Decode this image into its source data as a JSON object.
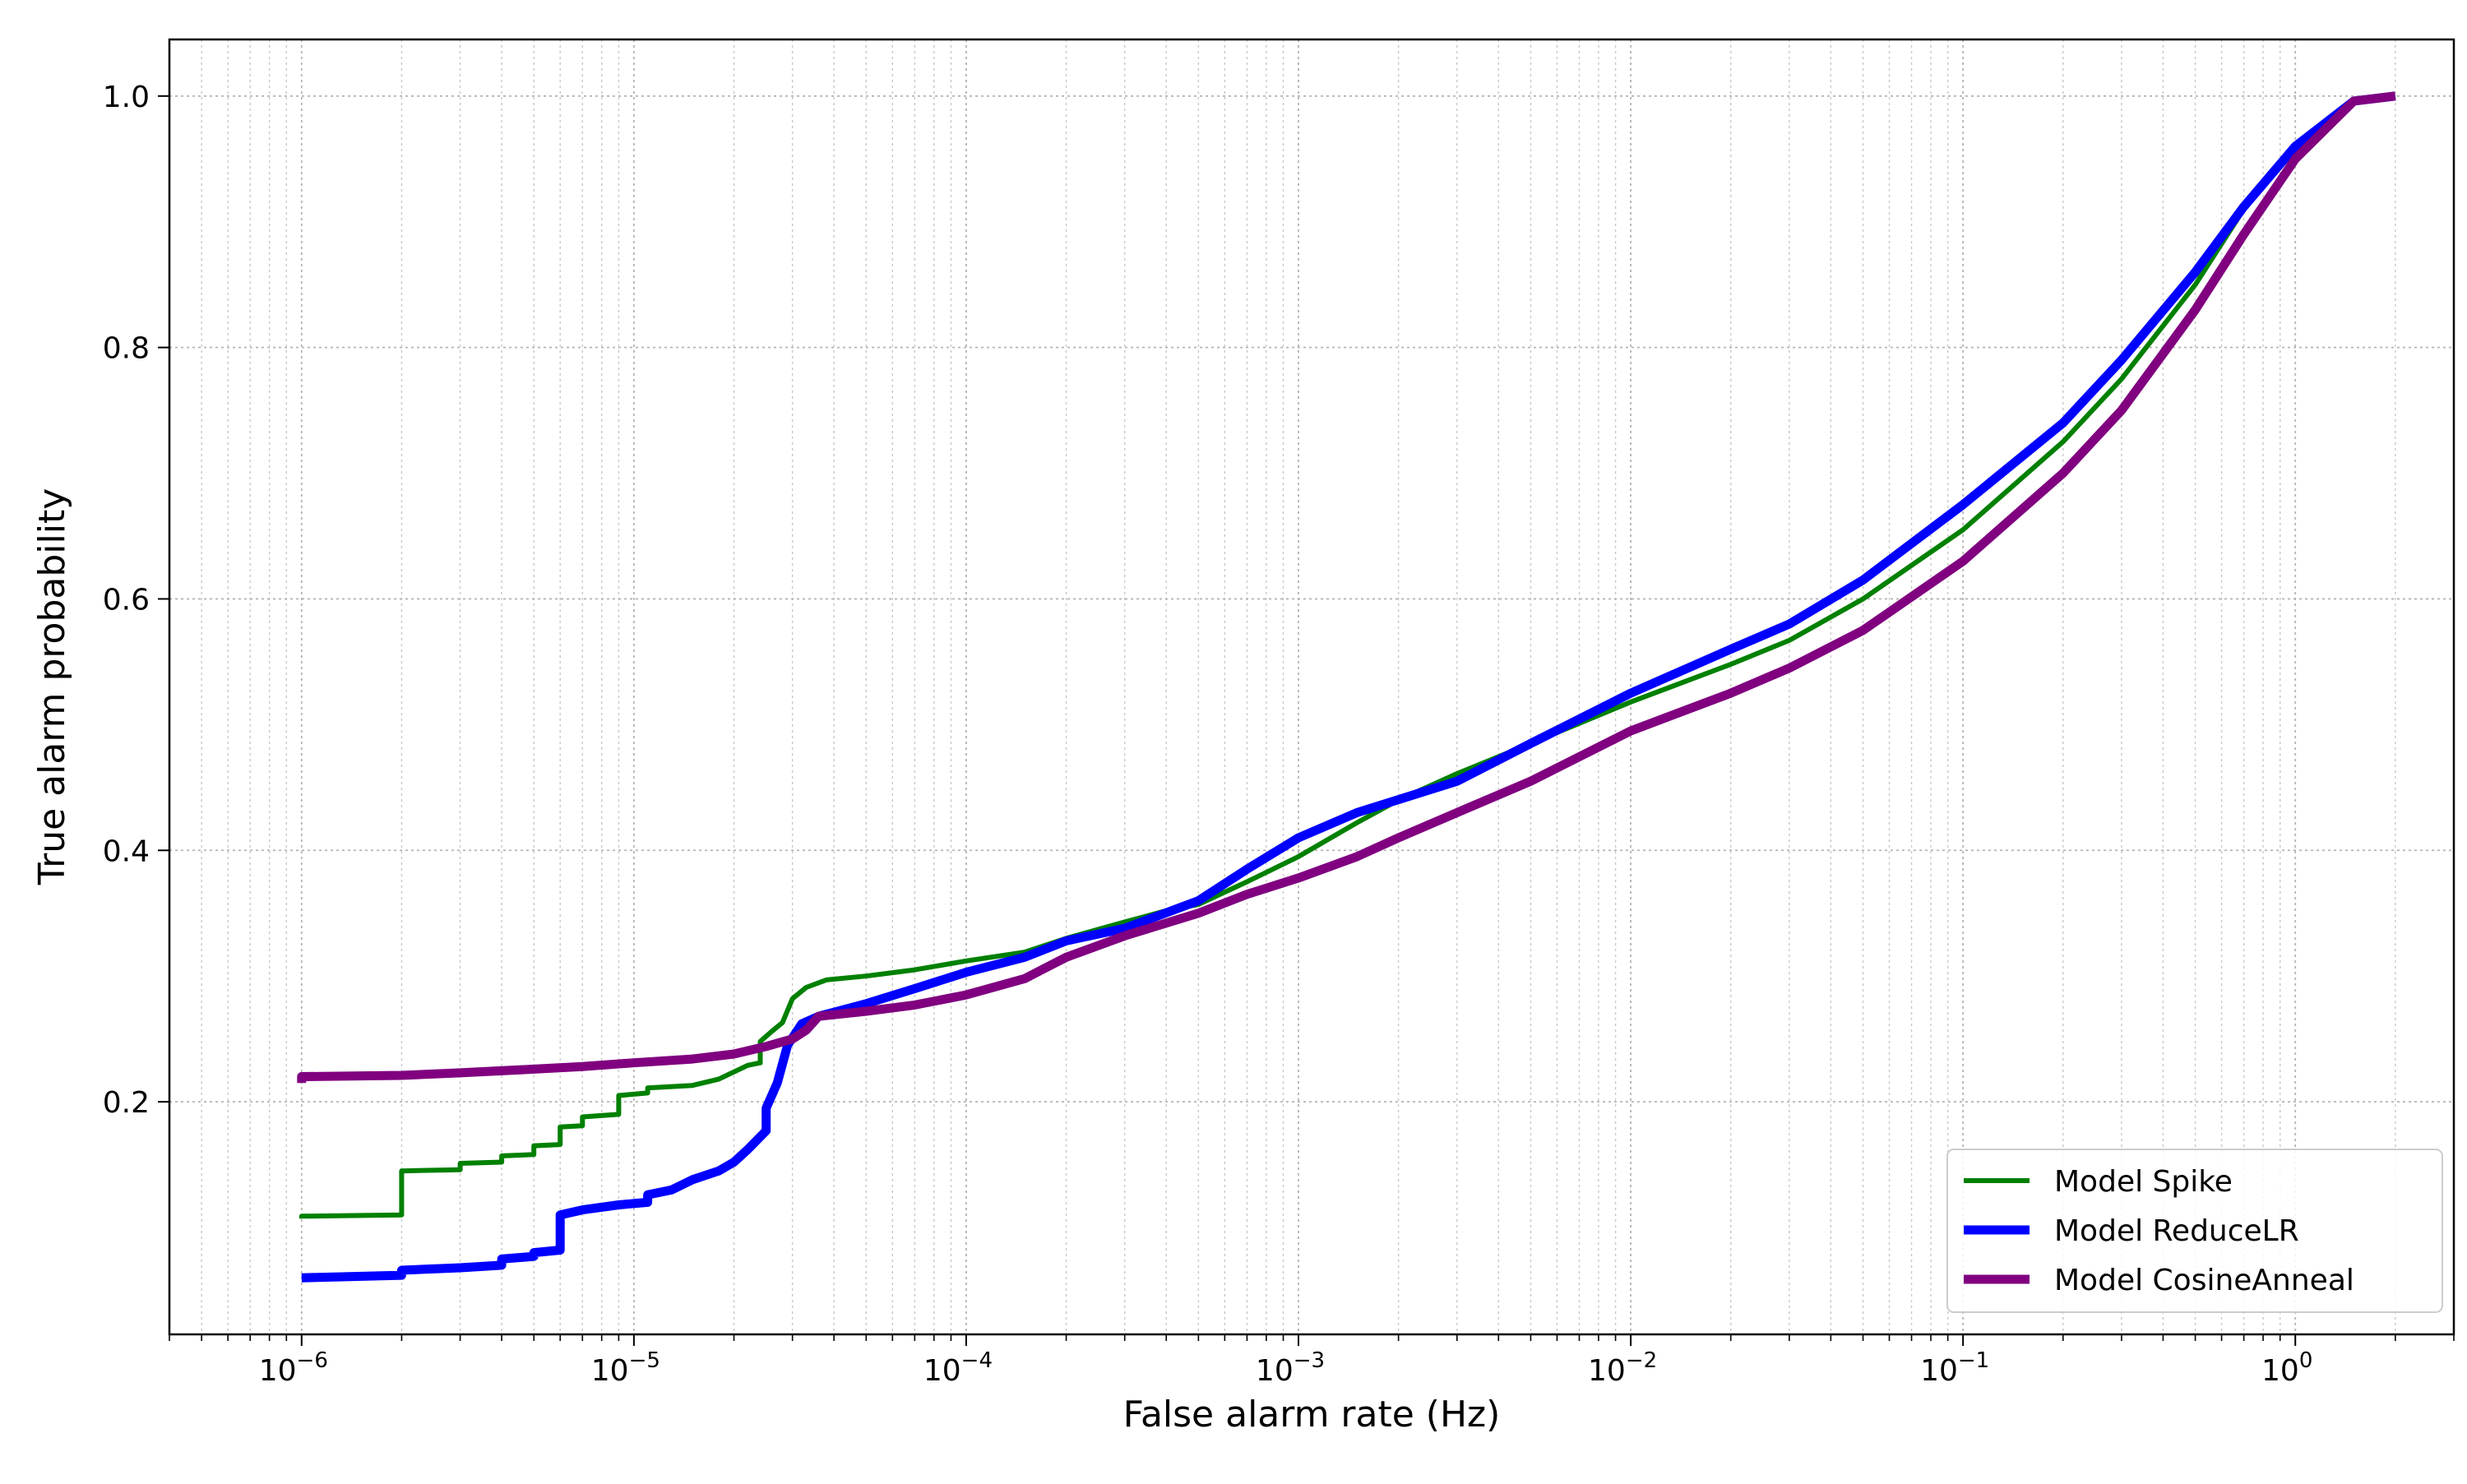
{
  "chart_data": {
    "type": "line",
    "title": "",
    "xlabel": "False alarm rate (Hz)",
    "ylabel": "True alarm probability",
    "xscale": "log",
    "xlim": [
      4e-07,
      3.0
    ],
    "ylim": [
      0.015,
      1.045
    ],
    "x_ticks": [
      {
        "value": 1e-06,
        "base": "10",
        "exp": "−6"
      },
      {
        "value": 1e-05,
        "base": "10",
        "exp": "−5"
      },
      {
        "value": 0.0001,
        "base": "10",
        "exp": "−4"
      },
      {
        "value": 0.001,
        "base": "10",
        "exp": "−3"
      },
      {
        "value": 0.01,
        "base": "10",
        "exp": "−2"
      },
      {
        "value": 0.1,
        "base": "10",
        "exp": "−1"
      },
      {
        "value": 1,
        "base": "10",
        "exp": "0"
      }
    ],
    "y_ticks": [
      {
        "value": 0.2,
        "label": "0.2"
      },
      {
        "value": 0.4,
        "label": "0.4"
      },
      {
        "value": 0.6,
        "label": "0.6"
      },
      {
        "value": 0.8,
        "label": "0.8"
      },
      {
        "value": 1.0,
        "label": "1.0"
      }
    ],
    "grid": true,
    "legend_position": "bottom-right",
    "series": [
      {
        "name": "Model Spike",
        "color": "#008000",
        "line": "thin",
        "points": [
          [
            1e-06,
            0.107
          ],
          [
            1e-06,
            0.109
          ],
          [
            2e-06,
            0.11
          ],
          [
            2e-06,
            0.145
          ],
          [
            3e-06,
            0.146
          ],
          [
            3e-06,
            0.151
          ],
          [
            4e-06,
            0.152
          ],
          [
            4e-06,
            0.157
          ],
          [
            5e-06,
            0.158
          ],
          [
            5e-06,
            0.165
          ],
          [
            6e-06,
            0.166
          ],
          [
            6e-06,
            0.18
          ],
          [
            7e-06,
            0.181
          ],
          [
            7e-06,
            0.188
          ],
          [
            9e-06,
            0.19
          ],
          [
            9e-06,
            0.205
          ],
          [
            1.1e-05,
            0.207
          ],
          [
            1.1e-05,
            0.211
          ],
          [
            1.5e-05,
            0.213
          ],
          [
            1.8e-05,
            0.218
          ],
          [
            2.2e-05,
            0.229
          ],
          [
            2.4e-05,
            0.231
          ],
          [
            2.4e-05,
            0.248
          ],
          [
            2.6e-05,
            0.256
          ],
          [
            2.8e-05,
            0.263
          ],
          [
            3e-05,
            0.282
          ],
          [
            3.3e-05,
            0.291
          ],
          [
            3.8e-05,
            0.297
          ],
          [
            5e-05,
            0.3
          ],
          [
            7e-05,
            0.305
          ],
          [
            0.0001,
            0.312
          ],
          [
            0.00015,
            0.319
          ],
          [
            0.0002,
            0.33
          ],
          [
            0.0003,
            0.343
          ],
          [
            0.0004,
            0.352
          ],
          [
            0.0005,
            0.357
          ],
          [
            0.0007,
            0.375
          ],
          [
            0.001,
            0.395
          ],
          [
            0.0015,
            0.422
          ],
          [
            0.002,
            0.44
          ],
          [
            0.003,
            0.461
          ],
          [
            0.005,
            0.485
          ],
          [
            0.01,
            0.518
          ],
          [
            0.02,
            0.548
          ],
          [
            0.03,
            0.567
          ],
          [
            0.05,
            0.6
          ],
          [
            0.1,
            0.655
          ],
          [
            0.2,
            0.725
          ],
          [
            0.3,
            0.775
          ],
          [
            0.5,
            0.85
          ],
          [
            0.7,
            0.91
          ],
          [
            1.0,
            0.96
          ],
          [
            1.5,
            0.996
          ],
          [
            2.0,
            1.0
          ]
        ]
      },
      {
        "name": "Model ReduceLR",
        "color": "#0000ff",
        "line": "thick",
        "points": [
          [
            1e-06,
            0.06
          ],
          [
            2e-06,
            0.062
          ],
          [
            2e-06,
            0.066
          ],
          [
            3e-06,
            0.068
          ],
          [
            4e-06,
            0.07
          ],
          [
            4e-06,
            0.075
          ],
          [
            5e-06,
            0.077
          ],
          [
            5e-06,
            0.08
          ],
          [
            6e-06,
            0.082
          ],
          [
            6e-06,
            0.11
          ],
          [
            7e-06,
            0.114
          ],
          [
            9e-06,
            0.118
          ],
          [
            1.1e-05,
            0.12
          ],
          [
            1.1e-05,
            0.126
          ],
          [
            1.3e-05,
            0.13
          ],
          [
            1.5e-05,
            0.138
          ],
          [
            1.8e-05,
            0.145
          ],
          [
            2e-05,
            0.152
          ],
          [
            2.2e-05,
            0.162
          ],
          [
            2.5e-05,
            0.177
          ],
          [
            2.5e-05,
            0.195
          ],
          [
            2.7e-05,
            0.215
          ],
          [
            2.9e-05,
            0.245
          ],
          [
            3.2e-05,
            0.262
          ],
          [
            3.6e-05,
            0.268
          ],
          [
            5e-05,
            0.278
          ],
          [
            7e-05,
            0.29
          ],
          [
            0.0001,
            0.303
          ],
          [
            0.00015,
            0.315
          ],
          [
            0.0002,
            0.328
          ],
          [
            0.0003,
            0.338
          ],
          [
            0.0005,
            0.36
          ],
          [
            0.0007,
            0.385
          ],
          [
            0.001,
            0.41
          ],
          [
            0.0015,
            0.43
          ],
          [
            0.003,
            0.455
          ],
          [
            0.005,
            0.485
          ],
          [
            0.01,
            0.525
          ],
          [
            0.02,
            0.56
          ],
          [
            0.03,
            0.58
          ],
          [
            0.05,
            0.615
          ],
          [
            0.1,
            0.675
          ],
          [
            0.2,
            0.74
          ],
          [
            0.3,
            0.79
          ],
          [
            0.5,
            0.86
          ],
          [
            0.7,
            0.912
          ],
          [
            1.0,
            0.96
          ],
          [
            1.5,
            0.996
          ],
          [
            2.0,
            1.0
          ]
        ]
      },
      {
        "name": "Model CosineAnneal",
        "color": "#800080",
        "line": "thick",
        "points": [
          [
            1e-06,
            0.215
          ],
          [
            1e-06,
            0.22
          ],
          [
            2e-06,
            0.221
          ],
          [
            3e-06,
            0.223
          ],
          [
            5e-06,
            0.226
          ],
          [
            7e-06,
            0.228
          ],
          [
            1e-05,
            0.231
          ],
          [
            1.5e-05,
            0.234
          ],
          [
            2e-05,
            0.238
          ],
          [
            2.5e-05,
            0.244
          ],
          [
            3e-05,
            0.25
          ],
          [
            3.3e-05,
            0.257
          ],
          [
            3.6e-05,
            0.268
          ],
          [
            5e-05,
            0.272
          ],
          [
            7e-05,
            0.277
          ],
          [
            0.0001,
            0.285
          ],
          [
            0.00015,
            0.298
          ],
          [
            0.0002,
            0.315
          ],
          [
            0.0003,
            0.332
          ],
          [
            0.0005,
            0.35
          ],
          [
            0.0007,
            0.365
          ],
          [
            0.001,
            0.378
          ],
          [
            0.0015,
            0.395
          ],
          [
            0.002,
            0.41
          ],
          [
            0.003,
            0.43
          ],
          [
            0.005,
            0.455
          ],
          [
            0.01,
            0.495
          ],
          [
            0.02,
            0.525
          ],
          [
            0.03,
            0.545
          ],
          [
            0.05,
            0.575
          ],
          [
            0.1,
            0.63
          ],
          [
            0.2,
            0.7
          ],
          [
            0.3,
            0.75
          ],
          [
            0.5,
            0.83
          ],
          [
            0.7,
            0.89
          ],
          [
            1.0,
            0.95
          ],
          [
            1.5,
            0.996
          ],
          [
            2.0,
            1.0
          ]
        ]
      }
    ]
  }
}
